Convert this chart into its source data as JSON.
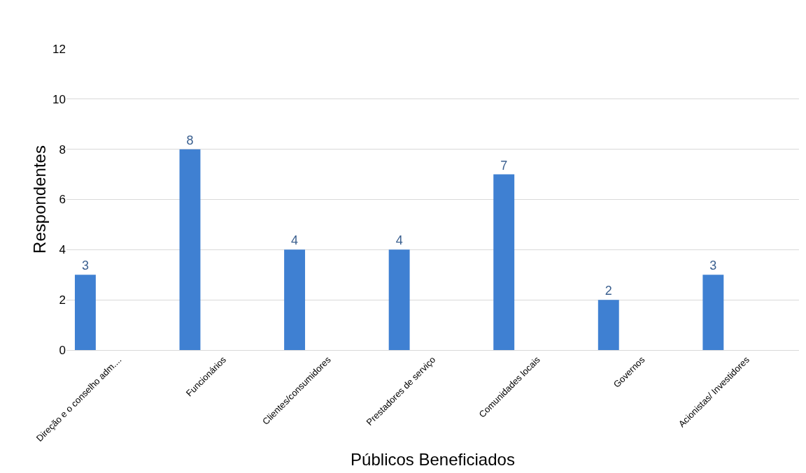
{
  "chart_data": {
    "type": "bar",
    "xlabel": "Públicos Beneficiados",
    "ylabel": "Respondentes",
    "categories": [
      "Direção e o conselho adm....",
      "Funcionários",
      "Clientes/consumidores",
      "Prestadores de serviço",
      "Comunidades locais",
      "Governos",
      "Acionistas/ Investidores"
    ],
    "values": [
      3,
      8,
      4,
      4,
      7,
      2,
      3
    ],
    "color": "#3f80d2",
    "ylim": [
      0,
      12
    ],
    "yticks": [
      0,
      2,
      4,
      6,
      8,
      10,
      12
    ],
    "grid": "y",
    "data_labels": true
  }
}
